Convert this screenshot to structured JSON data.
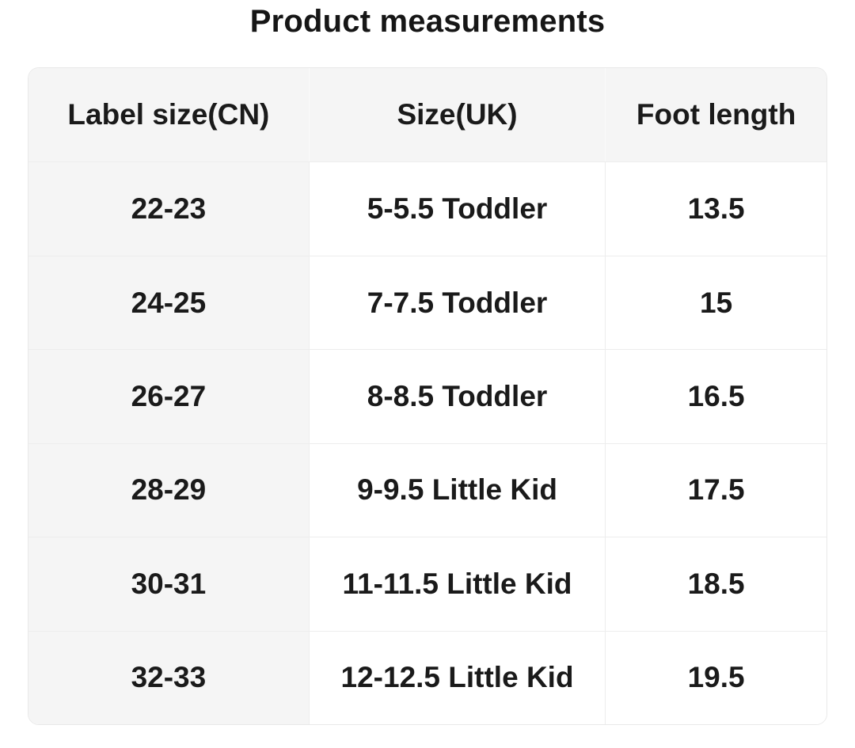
{
  "page": {
    "title": "Product measurements"
  },
  "table": {
    "headers": {
      "cn": "Label size(CN)",
      "uk": "Size(UK)",
      "foot": "Foot length"
    },
    "rows": [
      {
        "cn": "22-23",
        "uk": "5-5.5 Toddler",
        "foot": "13.5"
      },
      {
        "cn": "24-25",
        "uk": "7-7.5 Toddler",
        "foot": "15"
      },
      {
        "cn": "26-27",
        "uk": "8-8.5 Toddler",
        "foot": "16.5"
      },
      {
        "cn": "28-29",
        "uk": "9-9.5 Little Kid",
        "foot": "17.5"
      },
      {
        "cn": "30-31",
        "uk": "11-11.5 Little Kid",
        "foot": "18.5"
      },
      {
        "cn": "32-33",
        "uk": "12-12.5 Little Kid",
        "foot": "19.5"
      }
    ],
    "colors": {
      "header_bg": "#f5f5f5",
      "label_column_bg": "#f5f5f5",
      "body_bg": "#ffffff",
      "divider": "#ededed",
      "outer_border": "#e9e9e9",
      "text": "#1a1a1a"
    }
  }
}
